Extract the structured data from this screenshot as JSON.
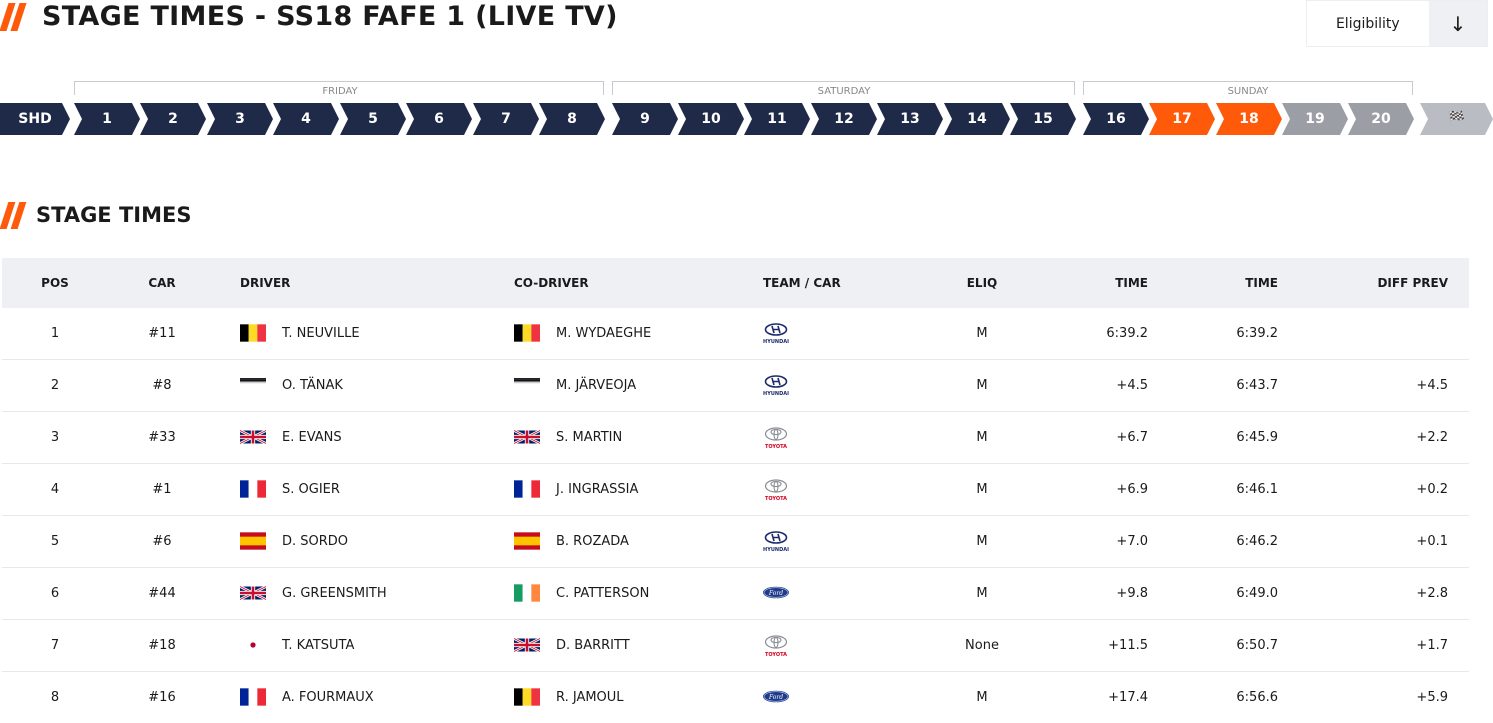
{
  "header": {
    "title": "STAGE TIMES - SS18 FAFE 1 (LIVE TV)",
    "eligibility_label": "Eligibility",
    "arrow_icon": "↓"
  },
  "days": [
    {
      "label": "FRIDAY"
    },
    {
      "label": "SATURDAY"
    },
    {
      "label": "SUNDAY"
    }
  ],
  "stages": [
    {
      "label": "SHD",
      "state": "done"
    },
    {
      "label": "1",
      "state": "done"
    },
    {
      "label": "2",
      "state": "done"
    },
    {
      "label": "3",
      "state": "done"
    },
    {
      "label": "4",
      "state": "done"
    },
    {
      "label": "5",
      "state": "done"
    },
    {
      "label": "6",
      "state": "done"
    },
    {
      "label": "7",
      "state": "done"
    },
    {
      "label": "8",
      "state": "done"
    },
    {
      "label": "9",
      "state": "done"
    },
    {
      "label": "10",
      "state": "done"
    },
    {
      "label": "11",
      "state": "done"
    },
    {
      "label": "12",
      "state": "done"
    },
    {
      "label": "13",
      "state": "done"
    },
    {
      "label": "14",
      "state": "done"
    },
    {
      "label": "15",
      "state": "done"
    },
    {
      "label": "16",
      "state": "done"
    },
    {
      "label": "17",
      "state": "live"
    },
    {
      "label": "18",
      "state": "live"
    },
    {
      "label": "19",
      "state": "future"
    },
    {
      "label": "20",
      "state": "future"
    },
    {
      "label": "🏁",
      "state": "flag"
    }
  ],
  "section": {
    "title": "STAGE TIMES"
  },
  "columns": {
    "pos": "POS",
    "car": "CAR",
    "driver": "DRIVER",
    "codriver": "CO-DRIVER",
    "team": "TEAM / CAR",
    "eliq": "ELIQ",
    "time1": "TIME",
    "time2": "TIME",
    "diff": "DIFF PREV"
  },
  "colors": {
    "accent": "#ff5a0a",
    "navy": "#1e2a47",
    "future": "#9b9ea4"
  },
  "rows": [
    {
      "pos": "1",
      "car": "#11",
      "driver": "T. NEUVILLE",
      "driver_flag": "be",
      "codriver": "M. WYDAEGHE",
      "codriver_flag": "be",
      "team": "hyundai",
      "team_caption": "HYUNDAI",
      "eliq": "M",
      "time1": "6:39.2",
      "time2": "6:39.2",
      "diff": ""
    },
    {
      "pos": "2",
      "car": "#8",
      "driver": "O. TÄNAK",
      "driver_flag": "ee",
      "codriver": "M. JÄRVEOJA",
      "codriver_flag": "ee",
      "team": "hyundai",
      "team_caption": "HYUNDAI",
      "eliq": "M",
      "time1": "+4.5",
      "time2": "6:43.7",
      "diff": "+4.5"
    },
    {
      "pos": "3",
      "car": "#33",
      "driver": "E. EVANS",
      "driver_flag": "gb",
      "codriver": "S. MARTIN",
      "codriver_flag": "gb",
      "team": "toyota",
      "team_caption": "TOYOTA",
      "eliq": "M",
      "time1": "+6.7",
      "time2": "6:45.9",
      "diff": "+2.2"
    },
    {
      "pos": "4",
      "car": "#1",
      "driver": "S. OGIER",
      "driver_flag": "fr",
      "codriver": "J. INGRASSIA",
      "codriver_flag": "fr",
      "team": "toyota",
      "team_caption": "TOYOTA",
      "eliq": "M",
      "time1": "+6.9",
      "time2": "6:46.1",
      "diff": "+0.2"
    },
    {
      "pos": "5",
      "car": "#6",
      "driver": "D. SORDO",
      "driver_flag": "es",
      "codriver": "B. ROZADA",
      "codriver_flag": "es",
      "team": "hyundai",
      "team_caption": "HYUNDAI",
      "eliq": "M",
      "time1": "+7.0",
      "time2": "6:46.2",
      "diff": "+0.1"
    },
    {
      "pos": "6",
      "car": "#44",
      "driver": "G. GREENSMITH",
      "driver_flag": "gb",
      "codriver": "C. PATTERSON",
      "codriver_flag": "ie",
      "team": "ford",
      "team_caption": "",
      "eliq": "M",
      "time1": "+9.8",
      "time2": "6:49.0",
      "diff": "+2.8"
    },
    {
      "pos": "7",
      "car": "#18",
      "driver": "T. KATSUTA",
      "driver_flag": "jp",
      "codriver": "D. BARRITT",
      "codriver_flag": "gb",
      "team": "toyota",
      "team_caption": "TOYOTA",
      "eliq": "None",
      "time1": "+11.5",
      "time2": "6:50.7",
      "diff": "+1.7"
    },
    {
      "pos": "8",
      "car": "#16",
      "driver": "A. FOURMAUX",
      "driver_flag": "fr",
      "codriver": "R. JAMOUL",
      "codriver_flag": "be",
      "team": "ford",
      "team_caption": "",
      "eliq": "M",
      "time1": "+17.4",
      "time2": "6:56.6",
      "diff": "+5.9"
    }
  ]
}
